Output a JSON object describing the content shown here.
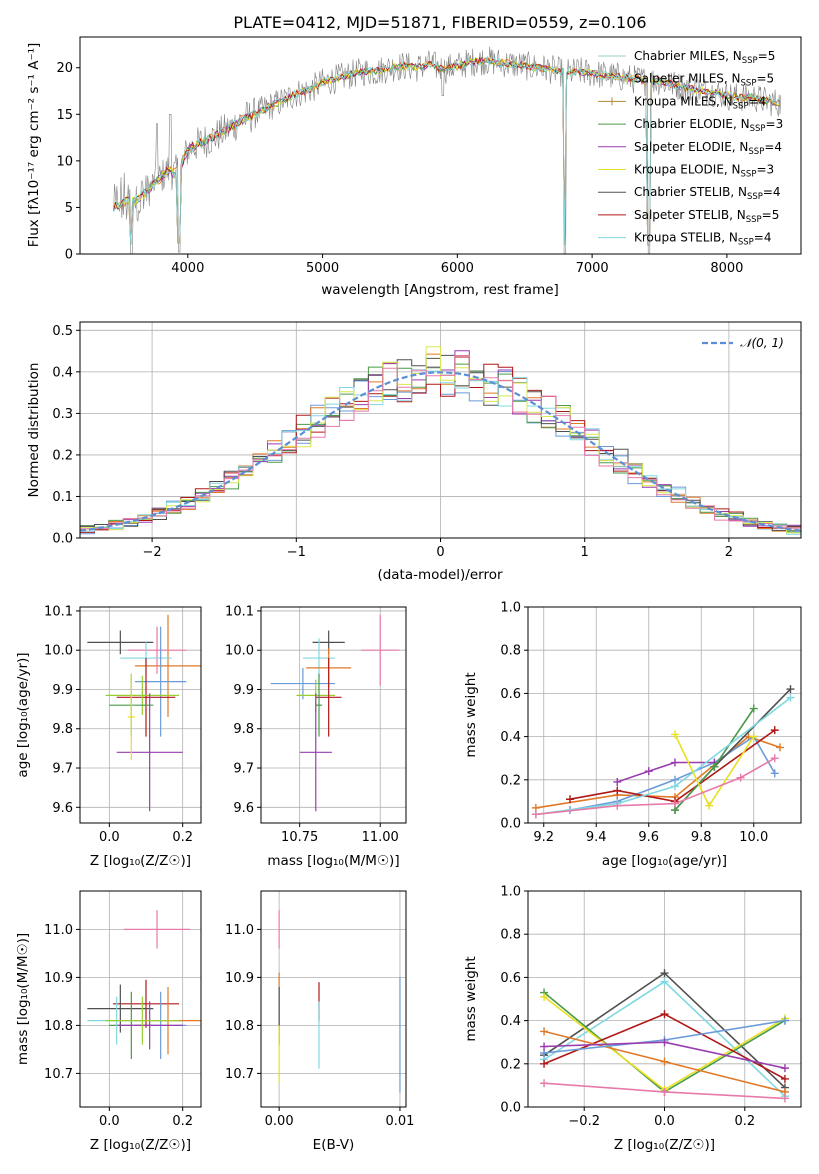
{
  "page": {
    "title": "PLATE=0412, MJD=51871, FIBERID=0559, z=0.106"
  },
  "colors": {
    "Chabrier MILES": "#6a9bd8",
    "Salpeter MILES": "#9ad0d0",
    "Kroupa MILES": "#e07a28",
    "Chabrier ELODIE": "#4a9a4a",
    "Salpeter ELODIE": "#9a3cb0",
    "Kroupa ELODIE": "#e8e020",
    "Chabrier STELIB": "#505050",
    "Salpeter STELIB": "#b01818",
    "Kroupa STELIB": "#80d8e0",
    "green2": "#9acd32",
    "pink": "#e87aaa",
    "gaussian": "#5b8fd6"
  },
  "chart_data": [
    {
      "id": "spectrum",
      "type": "line",
      "title": "PLATE=0412, MJD=51871, FIBERID=0559, z=0.106",
      "xlabel": "wavelength [Angstrom, rest frame]",
      "ylabel": "Flux [fλ10⁻¹⁷ erg cm⁻² s⁻¹ A⁻¹]",
      "xlim": [
        3200,
        8550
      ],
      "ylim": [
        0,
        23.3
      ],
      "xticks": [
        4000,
        5000,
        6000,
        7000,
        8000
      ],
      "yticks": [
        0,
        5,
        10,
        15,
        20
      ],
      "legend_position": "top-right",
      "legend": [
        {
          "name": "Chabrier MILES, N",
          "sub": "SSP",
          "suffix": "=5",
          "color": "#9ad0b0",
          "marker": false
        },
        {
          "name": "Salpeter MILES, N",
          "sub": "SSP",
          "suffix": "=5",
          "color": "#9ad0d0",
          "marker": false
        },
        {
          "name": "Kroupa MILES, N",
          "sub": "SSP",
          "suffix": "=4",
          "color": "#b08830",
          "marker": true
        },
        {
          "name": "Chabrier ELODIE, N",
          "sub": "SSP",
          "suffix": "=3",
          "color": "#4a9a4a",
          "marker": false
        },
        {
          "name": "Salpeter ELODIE, N",
          "sub": "SSP",
          "suffix": "=4",
          "color": "#9a3cb0",
          "marker": false
        },
        {
          "name": "Kroupa ELODIE, N",
          "sub": "SSP",
          "suffix": "=3",
          "color": "#e8e020",
          "marker": false
        },
        {
          "name": "Chabrier STELIB, N",
          "sub": "SSP",
          "suffix": "=4",
          "color": "#505050",
          "marker": false
        },
        {
          "name": "Salpeter STELIB, N",
          "sub": "SSP",
          "suffix": "=5",
          "color": "#b01818",
          "marker": false
        },
        {
          "name": "Kroupa STELIB, N",
          "sub": "SSP",
          "suffix": "=4",
          "color": "#80d8e0",
          "marker": false
        }
      ],
      "x": [
        3450,
        3500,
        3550,
        3600,
        3650,
        3700,
        3750,
        3800,
        3850,
        3900,
        3950,
        4000,
        4100,
        4200,
        4300,
        4400,
        4500,
        4600,
        4700,
        4800,
        4900,
        5000,
        5100,
        5200,
        5300,
        5400,
        5500,
        5600,
        5700,
        5800,
        5900,
        6000,
        6100,
        6200,
        6300,
        6400,
        6500,
        6600,
        6700,
        6800,
        6900,
        7000,
        7100,
        7200,
        7300,
        7400,
        7500,
        7600,
        7700,
        7800,
        7900,
        8000,
        8100,
        8200,
        8300,
        8400
      ],
      "y": [
        5.0,
        5.4,
        5.8,
        5.6,
        6.2,
        6.8,
        7.6,
        8.2,
        9.0,
        8.6,
        9.4,
        11.2,
        12.0,
        12.6,
        13.4,
        14.4,
        15.0,
        15.8,
        16.4,
        17.2,
        17.6,
        18.4,
        18.8,
        19.2,
        19.6,
        19.6,
        20.0,
        20.2,
        20.0,
        20.4,
        19.8,
        20.2,
        20.6,
        20.8,
        20.6,
        20.4,
        20.2,
        20.0,
        19.8,
        19.4,
        19.6,
        19.4,
        19.2,
        19.0,
        18.8,
        18.6,
        18.6,
        18.2,
        17.8,
        17.6,
        17.4,
        17.0,
        16.8,
        16.8,
        16.4,
        16.2
      ],
      "absorption_dips": [
        {
          "x": 3580,
          "y": 0.0
        },
        {
          "x": 3935,
          "y": 0.2
        },
        {
          "x": 5890,
          "y": 17.0
        },
        {
          "x": 6800,
          "y": 0.0
        },
        {
          "x": 7420,
          "y": 0.0
        }
      ]
    },
    {
      "id": "residuals",
      "type": "histogram",
      "xlabel": "(data-model)/error",
      "ylabel": "Normed distribution",
      "xlim": [
        -2.5,
        2.5
      ],
      "ylim": [
        0,
        0.52
      ],
      "xticks": [
        -2,
        -1,
        0,
        1,
        2
      ],
      "yticks": [
        0.0,
        0.1,
        0.2,
        0.3,
        0.4,
        0.5
      ],
      "bin_width": 0.1,
      "legend_position": "top-right",
      "gaussian_label": "𝒩(0, 1)"
    },
    {
      "id": "Z_age",
      "type": "errorbar",
      "xlabel": "Z [log₁₀(Z/Z☉)]",
      "ylabel": "age  [log₁₀(age/yr)]",
      "xlim": [
        -0.08,
        0.25
      ],
      "ylim": [
        9.56,
        10.11
      ],
      "xticks": [
        0.0,
        0.2
      ],
      "xtick_labels": [
        "0.0",
        "0.2"
      ],
      "yticks": [
        9.6,
        9.7,
        9.8,
        9.9,
        10.0,
        10.1
      ],
      "points": [
        {
          "x": 0.03,
          "xerr": 0.09,
          "y": 10.02,
          "yerr": 0.03,
          "color": "#505050"
        },
        {
          "x": 0.16,
          "xerr": 0.09,
          "y": 9.96,
          "yerr": 0.13,
          "color": "#e07a28"
        },
        {
          "x": 0.13,
          "xerr": 0.08,
          "y": 10.0,
          "yerr": 0.06,
          "color": "#e87aaa"
        },
        {
          "x": 0.1,
          "xerr": 0.07,
          "y": 9.98,
          "yerr": 0.04,
          "color": "#80d8e0"
        },
        {
          "x": 0.14,
          "xerr": 0.07,
          "y": 9.92,
          "yerr": 0.14,
          "color": "#6a9bd8"
        },
        {
          "x": 0.1,
          "xerr": 0.08,
          "y": 9.88,
          "yerr": 0.1,
          "color": "#b01818"
        },
        {
          "x": 0.09,
          "xerr": 0.1,
          "y": 9.885,
          "yerr": 0.05,
          "color": "#9acd32"
        },
        {
          "x": 0.06,
          "xerr": 0.06,
          "y": 9.86,
          "yerr": 0.08,
          "color": "#4a9a4a"
        },
        {
          "x": 0.11,
          "xerr": 0.09,
          "y": 9.74,
          "yerr": 0.15,
          "color": "#9a3cb0"
        },
        {
          "x": 0.06,
          "xerr": 0.01,
          "y": 9.83,
          "yerr": 0.11,
          "color": "#e8e020"
        }
      ]
    },
    {
      "id": "mass_age",
      "type": "errorbar",
      "xlabel": "mass [log₁₀(M/M☉)]",
      "ylabel": "",
      "xlim": [
        10.63,
        11.08
      ],
      "ylim": [
        9.56,
        10.11
      ],
      "xticks": [
        10.75,
        11.0
      ],
      "xtick_labels": [
        "10.75",
        "11.00"
      ],
      "yticks": [
        9.6,
        9.7,
        9.8,
        9.9,
        10.0,
        10.1
      ],
      "points": [
        {
          "x": 10.84,
          "xerr": 0.05,
          "y": 10.02,
          "yerr": 0.03,
          "color": "#505050"
        },
        {
          "x": 11.0,
          "xerr": 0.06,
          "y": 10.0,
          "yerr": 0.09,
          "color": "#e87aaa"
        },
        {
          "x": 10.81,
          "xerr": 0.05,
          "y": 9.98,
          "yerr": 0.05,
          "color": "#80d8e0"
        },
        {
          "x": 10.84,
          "xerr": 0.07,
          "y": 9.955,
          "yerr": 0.05,
          "color": "#e07a28"
        },
        {
          "x": 10.76,
          "xerr": 0.1,
          "y": 9.915,
          "yerr": 0.04,
          "color": "#6a9bd8"
        },
        {
          "x": 10.8,
          "xerr": 0.06,
          "y": 9.885,
          "yerr": 0.04,
          "color": "#9acd32"
        },
        {
          "x": 10.84,
          "xerr": 0.04,
          "y": 9.88,
          "yerr": 0.1,
          "color": "#b01818"
        },
        {
          "x": 10.81,
          "xerr": 0.01,
          "y": 9.86,
          "yerr": 0.08,
          "color": "#4a9a4a"
        },
        {
          "x": 10.8,
          "xerr": 0.05,
          "y": 9.74,
          "yerr": 0.15,
          "color": "#9a3cb0"
        }
      ]
    },
    {
      "id": "age_weight",
      "type": "line",
      "xlabel": "age  [log₁₀(age/yr)]",
      "ylabel": "mass weight",
      "xlim": [
        9.14,
        10.18
      ],
      "ylim": [
        0,
        1.0
      ],
      "xticks": [
        9.2,
        9.4,
        9.6,
        9.8,
        10.0
      ],
      "yticks": [
        0.0,
        0.2,
        0.4,
        0.6,
        0.8,
        1.0
      ],
      "series": [
        {
          "color": "#e07a28",
          "x": [
            9.17,
            9.48,
            9.7,
            9.98,
            10.1
          ],
          "y": [
            0.07,
            0.13,
            0.12,
            0.4,
            0.35
          ]
        },
        {
          "color": "#6a9bd8",
          "x": [
            9.3,
            9.48,
            9.7,
            9.85,
            10.0,
            10.08
          ],
          "y": [
            0.06,
            0.1,
            0.2,
            0.28,
            0.4,
            0.23
          ]
        },
        {
          "color": "#9a3cb0",
          "x": [
            9.48,
            9.6,
            9.7,
            9.85
          ],
          "y": [
            0.19,
            0.24,
            0.28,
            0.28
          ]
        },
        {
          "color": "#b01818",
          "x": [
            9.3,
            9.48,
            9.7,
            10.08
          ],
          "y": [
            0.11,
            0.15,
            0.1,
            0.43
          ]
        },
        {
          "color": "#505050",
          "x": [
            9.7,
            9.85,
            10.14
          ],
          "y": [
            0.06,
            0.26,
            0.62
          ]
        },
        {
          "color": "#4a9a4a",
          "x": [
            9.7,
            9.85,
            10.0
          ],
          "y": [
            0.06,
            0.26,
            0.53
          ]
        },
        {
          "color": "#80d8e0",
          "x": [
            9.17,
            9.48,
            9.7,
            10.14
          ],
          "y": [
            0.04,
            0.09,
            0.17,
            0.58
          ]
        },
        {
          "color": "#e8e020",
          "x": [
            9.7,
            9.83,
            10.0
          ],
          "y": [
            0.41,
            0.08,
            0.4
          ]
        },
        {
          "color": "#e87aaa",
          "x": [
            9.17,
            9.48,
            9.7,
            9.95,
            10.08
          ],
          "y": [
            0.04,
            0.08,
            0.09,
            0.21,
            0.3
          ]
        }
      ]
    },
    {
      "id": "Z_mass",
      "type": "errorbar",
      "xlabel": "Z [log₁₀(Z/Z☉)]",
      "ylabel": "mass [log₁₀(M/M☉)]",
      "xlim": [
        -0.08,
        0.25
      ],
      "ylim": [
        10.63,
        11.08
      ],
      "xticks": [
        0.0,
        0.2
      ],
      "xtick_labels": [
        "0.0",
        "0.2"
      ],
      "yticks": [
        10.7,
        10.8,
        10.9,
        11.0
      ],
      "ytick_labels": [
        "10.7",
        "10.8",
        "10.9",
        "11.0"
      ],
      "points": [
        {
          "x": 0.13,
          "xerr": 0.09,
          "y": 11.0,
          "yerr": 0.04,
          "color": "#e87aaa"
        },
        {
          "x": 0.1,
          "xerr": 0.09,
          "y": 10.845,
          "yerr": 0.05,
          "color": "#b01818"
        },
        {
          "x": 0.03,
          "xerr": 0.09,
          "y": 10.835,
          "yerr": 0.05,
          "color": "#505050"
        },
        {
          "x": 0.16,
          "xerr": 0.09,
          "y": 10.81,
          "yerr": 0.07,
          "color": "#e07a28"
        },
        {
          "x": 0.14,
          "xerr": 0.07,
          "y": 10.8,
          "yerr": 0.07,
          "color": "#6a9bd8"
        },
        {
          "x": 0.06,
          "xerr": 0.06,
          "y": 10.8,
          "yerr": 0.07,
          "color": "#4a9a4a"
        },
        {
          "x": 0.11,
          "xerr": 0.09,
          "y": 10.8,
          "yerr": 0.05,
          "color": "#9a3cb0"
        },
        {
          "x": 0.02,
          "xerr": 0.08,
          "y": 10.81,
          "yerr": 0.05,
          "color": "#80d8e0"
        },
        {
          "x": 0.09,
          "xerr": 0.1,
          "y": 10.81,
          "yerr": 0.05,
          "color": "#9acd32"
        }
      ]
    },
    {
      "id": "ebv_mass",
      "type": "errorbar",
      "xlabel": "E(B-V)",
      "ylabel": "",
      "xlim": [
        -0.0015,
        0.0105
      ],
      "ylim": [
        10.63,
        11.08
      ],
      "xticks": [
        0.0,
        0.01
      ],
      "xtick_labels": [
        "0.00",
        "0.01"
      ],
      "yticks": [
        10.7,
        10.8,
        10.9,
        11.0
      ],
      "ytick_labels": [
        "10.7",
        "10.8",
        "10.9",
        "11.0"
      ],
      "points": [
        {
          "x": 0.0,
          "y": 11.0,
          "yerr": 0.04,
          "color": "#e87aaa"
        },
        {
          "x": 0.0,
          "y": 10.85,
          "yerr": 0.06,
          "color": "#e07a28"
        },
        {
          "x": 0.0,
          "y": 10.82,
          "yerr": 0.06,
          "color": "#505050"
        },
        {
          "x": 0.0,
          "y": 10.74,
          "yerr": 0.06,
          "color": "#e8e020"
        },
        {
          "x": 0.0033,
          "y": 10.85,
          "yerr": 0.04,
          "color": "#b01818"
        },
        {
          "x": 0.0033,
          "y": 10.78,
          "yerr": 0.07,
          "color": "#80d8e0"
        },
        {
          "x": 0.01,
          "y": 10.78,
          "yerr": 0.12,
          "color": "#6a9bd8"
        }
      ]
    },
    {
      "id": "Z_weight",
      "type": "line",
      "xlabel": "Z [log₁₀(Z/Z☉)]",
      "ylabel": "mass weight",
      "xlim": [
        -0.34,
        0.34
      ],
      "ylim": [
        0,
        1.0
      ],
      "xticks": [
        -0.2,
        0.0,
        0.2
      ],
      "xtick_labels": [
        "−0.2",
        "0.0",
        "0.2"
      ],
      "yticks": [
        0.0,
        0.2,
        0.4,
        0.6,
        0.8,
        1.0
      ],
      "series": [
        {
          "color": "#505050",
          "x": [
            -0.3,
            0.0,
            0.3
          ],
          "y": [
            0.24,
            0.62,
            0.09
          ]
        },
        {
          "color": "#80d8e0",
          "x": [
            -0.3,
            0.0,
            0.3
          ],
          "y": [
            0.22,
            0.58,
            0.05
          ]
        },
        {
          "color": "#4a9a4a",
          "x": [
            -0.3,
            0.0,
            0.3
          ],
          "y": [
            0.53,
            0.07,
            0.4
          ]
        },
        {
          "color": "#e8e020",
          "x": [
            -0.3,
            0.0,
            0.3
          ],
          "y": [
            0.51,
            0.08,
            0.41
          ]
        },
        {
          "color": "#b01818",
          "x": [
            -0.3,
            0.0,
            0.3
          ],
          "y": [
            0.2,
            0.43,
            0.13
          ]
        },
        {
          "color": "#e07a28",
          "x": [
            -0.3,
            0.0,
            0.3
          ],
          "y": [
            0.35,
            0.21,
            0.07
          ]
        },
        {
          "color": "#6a9bd8",
          "x": [
            -0.3,
            0.0,
            0.3
          ],
          "y": [
            0.25,
            0.31,
            0.4
          ]
        },
        {
          "color": "#9a3cb0",
          "x": [
            -0.3,
            0.0,
            0.3
          ],
          "y": [
            0.28,
            0.3,
            0.18
          ]
        },
        {
          "color": "#e87aaa",
          "x": [
            -0.3,
            0.0,
            0.3
          ],
          "y": [
            0.11,
            0.07,
            0.04
          ]
        }
      ]
    }
  ]
}
